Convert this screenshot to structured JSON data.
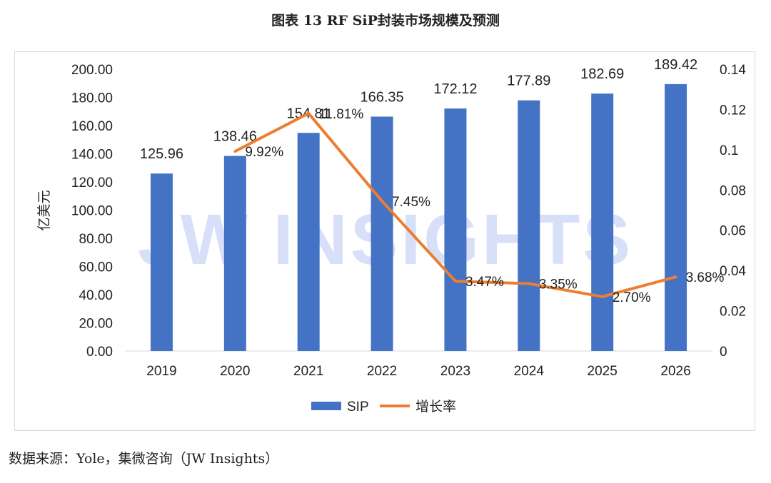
{
  "title": "图表 13 RF SiP封装市场规模及预测",
  "source": "数据来源：Yole，集微咨询（JW Insights）",
  "watermark": "JW INSIGHTS",
  "chart_data": {
    "type": "bar",
    "categories": [
      "2019",
      "2020",
      "2021",
      "2022",
      "2023",
      "2024",
      "2025",
      "2026"
    ],
    "series": [
      {
        "name": "SIP",
        "type": "bar",
        "axis": "left",
        "color": "#4472C4",
        "values": [
          125.96,
          138.46,
          154.81,
          166.35,
          172.12,
          177.89,
          182.69,
          189.42
        ],
        "labels": [
          "125.96",
          "138.46",
          "154.81",
          "166.35",
          "172.12",
          "177.89",
          "182.69",
          "189.42"
        ]
      },
      {
        "name": "增长率",
        "type": "line",
        "axis": "right",
        "color": "#ED7D31",
        "values": [
          null,
          0.0992,
          0.1181,
          0.0745,
          0.0347,
          0.0335,
          0.027,
          0.0368
        ],
        "labels": [
          "",
          "9.92%",
          "11.81%",
          "7.45%",
          "3.47%",
          "3.35%",
          "2.70%",
          "3.68%"
        ]
      }
    ],
    "ylabel": "亿美元",
    "ylim": [
      0,
      200
    ],
    "yticks": [
      "0.00",
      "20.00",
      "40.00",
      "60.00",
      "80.00",
      "100.00",
      "120.00",
      "140.00",
      "160.00",
      "180.00",
      "200.00"
    ],
    "y2lim": [
      0,
      0.14
    ],
    "y2ticks": [
      "0",
      "0.02",
      "0.04",
      "0.06",
      "0.08",
      "0.1",
      "0.12",
      "0.14"
    ],
    "legend": "bottom",
    "grid": false
  }
}
